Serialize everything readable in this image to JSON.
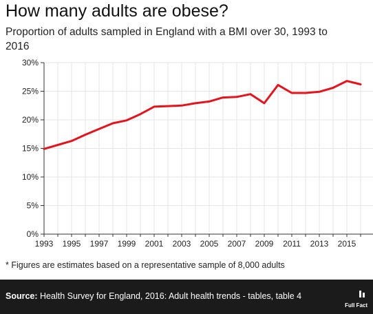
{
  "header": {
    "title": "How many adults are obese?",
    "subtitle": "Proportion of adults sampled in England with a BMI over 30, 1993 to 2016"
  },
  "footnote": "* Figures are estimates based on a representative sample of 8,000 adults",
  "footer": {
    "source_label": "Source:",
    "source_text": " Health Survey for England, 2016: Adult health trends - tables, table 4",
    "logo_text": "Full Fact"
  },
  "colors": {
    "line": "#e8121b",
    "footer_bg": "#1b1b1b",
    "grid": "#e5e5e5"
  },
  "chart_data": {
    "type": "line",
    "x": [
      1993,
      1994,
      1995,
      1996,
      1997,
      1998,
      1999,
      2000,
      2001,
      2002,
      2003,
      2004,
      2005,
      2006,
      2007,
      2008,
      2009,
      2010,
      2011,
      2012,
      2013,
      2014,
      2015,
      2016
    ],
    "series": [
      {
        "values": [
          14.9,
          15.6,
          16.3,
          17.4,
          18.4,
          19.4,
          19.9,
          21.0,
          22.3,
          22.4,
          22.5,
          22.9,
          23.2,
          23.9,
          24.0,
          24.5,
          22.9,
          26.1,
          24.7,
          24.7,
          24.9,
          25.6,
          26.8,
          26.2
        ]
      }
    ],
    "xlim": [
      1993,
      2016
    ],
    "ylim": [
      0,
      30
    ],
    "x_ticks": [
      "1993",
      "1995",
      "1997",
      "1999",
      "2001",
      "2003",
      "2005",
      "2007",
      "2009",
      "2011",
      "2013",
      "2015"
    ],
    "y_ticks": [
      "0%",
      "5%",
      "10%",
      "15%",
      "20%",
      "25%",
      "30%"
    ],
    "grid": "vertical-and-horizontal-light"
  }
}
